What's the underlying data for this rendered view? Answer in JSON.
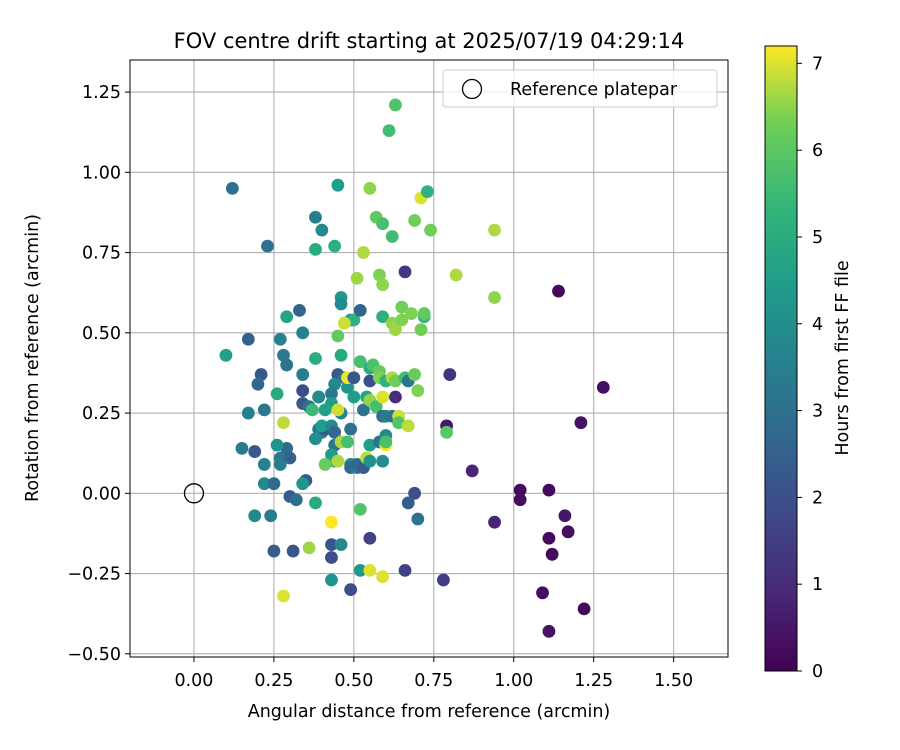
{
  "chart_data": {
    "type": "scatter",
    "title": "FOV centre drift starting at 2025/07/19 04:29:14",
    "xlabel": "Angular distance from reference (arcmin)",
    "ylabel": "Rotation from reference (arcmin)",
    "xlim": [
      -0.2,
      1.67
    ],
    "ylim": [
      -0.51,
      1.35
    ],
    "xticks": [
      0.0,
      0.25,
      0.5,
      0.75,
      1.0,
      1.25,
      1.5
    ],
    "xtick_labels": [
      "0.00",
      "0.25",
      "0.50",
      "0.75",
      "1.00",
      "1.25",
      "1.50"
    ],
    "yticks": [
      -0.5,
      -0.25,
      0.0,
      0.25,
      0.5,
      0.75,
      1.0,
      1.25
    ],
    "ytick_labels": [
      "−0.50",
      "−0.25",
      "0.00",
      "0.25",
      "0.50",
      "0.75",
      "1.00",
      "1.25"
    ],
    "grid": true,
    "legend": {
      "position": "top-right",
      "entries": [
        "Reference platepar"
      ]
    },
    "reference_point": {
      "x": 0.0,
      "y": 0.0,
      "marker": "open-circle"
    },
    "colorbar": {
      "label": "Hours from first FF file",
      "range": [
        0,
        7.2
      ],
      "ticks": [
        0,
        1,
        2,
        3,
        4,
        5,
        6,
        7
      ],
      "colormap": "viridis"
    },
    "points": [
      {
        "x": 1.28,
        "y": 0.33,
        "c": 0.3
      },
      {
        "x": 1.14,
        "y": 0.63,
        "c": 0.2
      },
      {
        "x": 1.21,
        "y": 0.22,
        "c": 0.4
      },
      {
        "x": 1.02,
        "y": 0.01,
        "c": 0.2
      },
      {
        "x": 1.02,
        "y": -0.02,
        "c": 0.3
      },
      {
        "x": 1.11,
        "y": 0.01,
        "c": 0.2
      },
      {
        "x": 1.16,
        "y": -0.07,
        "c": 0.5
      },
      {
        "x": 1.17,
        "y": -0.12,
        "c": 0.3
      },
      {
        "x": 1.11,
        "y": -0.14,
        "c": 0.2
      },
      {
        "x": 1.12,
        "y": -0.19,
        "c": 0.2
      },
      {
        "x": 1.09,
        "y": -0.31,
        "c": 0.3
      },
      {
        "x": 1.22,
        "y": -0.36,
        "c": 0.2
      },
      {
        "x": 1.11,
        "y": -0.43,
        "c": 0.4
      },
      {
        "x": 0.94,
        "y": -0.09,
        "c": 0.8
      },
      {
        "x": 0.87,
        "y": 0.07,
        "c": 0.8
      },
      {
        "x": 0.8,
        "y": 0.37,
        "c": 1.2
      },
      {
        "x": 0.79,
        "y": 0.21,
        "c": 0.5
      },
      {
        "x": 0.78,
        "y": -0.27,
        "c": 1.5
      },
      {
        "x": 0.66,
        "y": 0.69,
        "c": 1.3
      },
      {
        "x": 0.66,
        "y": -0.24,
        "c": 1.6
      },
      {
        "x": 0.69,
        "y": 0.0,
        "c": 2.0
      },
      {
        "x": 0.67,
        "y": -0.03,
        "c": 2.4
      },
      {
        "x": 0.7,
        "y": -0.08,
        "c": 3.1
      },
      {
        "x": 0.63,
        "y": 0.3,
        "c": 1.0
      },
      {
        "x": 0.55,
        "y": -0.14,
        "c": 1.6
      },
      {
        "x": 0.49,
        "y": -0.3,
        "c": 1.9
      },
      {
        "x": 0.43,
        "y": -0.2,
        "c": 1.9
      },
      {
        "x": 0.43,
        "y": -0.16,
        "c": 2.3
      },
      {
        "x": 0.31,
        "y": -0.18,
        "c": 2.2
      },
      {
        "x": 0.25,
        "y": -0.18,
        "c": 2.4
      },
      {
        "x": 0.12,
        "y": 0.95,
        "c": 3.0
      },
      {
        "x": 0.23,
        "y": 0.77,
        "c": 3.0
      },
      {
        "x": 0.17,
        "y": 0.48,
        "c": 2.5
      },
      {
        "x": 0.21,
        "y": 0.37,
        "c": 2.2
      },
      {
        "x": 0.2,
        "y": 0.34,
        "c": 2.7
      },
      {
        "x": 0.17,
        "y": 0.25,
        "c": 3.5
      },
      {
        "x": 0.22,
        "y": 0.26,
        "c": 3.3
      },
      {
        "x": 0.15,
        "y": 0.14,
        "c": 3.4
      },
      {
        "x": 0.19,
        "y": 0.13,
        "c": 2.3
      },
      {
        "x": 0.22,
        "y": 0.09,
        "c": 3.6
      },
      {
        "x": 0.22,
        "y": 0.03,
        "c": 3.8
      },
      {
        "x": 0.25,
        "y": 0.03,
        "c": 2.8
      },
      {
        "x": 0.19,
        "y": -0.07,
        "c": 3.8
      },
      {
        "x": 0.24,
        "y": -0.07,
        "c": 3.4
      },
      {
        "x": 0.1,
        "y": 0.43,
        "c": 4.6
      },
      {
        "x": 0.27,
        "y": 0.48,
        "c": 3.6
      },
      {
        "x": 0.28,
        "y": 0.43,
        "c": 3.3
      },
      {
        "x": 0.29,
        "y": 0.4,
        "c": 3.1
      },
      {
        "x": 0.26,
        "y": 0.31,
        "c": 4.9
      },
      {
        "x": 0.29,
        "y": 0.55,
        "c": 4.7
      },
      {
        "x": 0.33,
        "y": 0.57,
        "c": 2.6
      },
      {
        "x": 0.34,
        "y": 0.5,
        "c": 3.6
      },
      {
        "x": 0.34,
        "y": 0.37,
        "c": 3.4
      },
      {
        "x": 0.34,
        "y": 0.32,
        "c": 2.0
      },
      {
        "x": 0.34,
        "y": 0.28,
        "c": 2.3
      },
      {
        "x": 0.36,
        "y": 0.27,
        "c": 3.0
      },
      {
        "x": 0.29,
        "y": 0.14,
        "c": 2.8
      },
      {
        "x": 0.27,
        "y": 0.11,
        "c": 3.3
      },
      {
        "x": 0.3,
        "y": 0.11,
        "c": 2.5
      },
      {
        "x": 0.27,
        "y": 0.09,
        "c": 3.5
      },
      {
        "x": 0.26,
        "y": 0.15,
        "c": 4.2
      },
      {
        "x": 0.3,
        "y": -0.01,
        "c": 2.4
      },
      {
        "x": 0.32,
        "y": -0.02,
        "c": 2.9
      },
      {
        "x": 0.35,
        "y": 0.04,
        "c": 2.2
      },
      {
        "x": 0.34,
        "y": 0.03,
        "c": 4.2
      },
      {
        "x": 0.38,
        "y": -0.03,
        "c": 4.9
      },
      {
        "x": 0.36,
        "y": -0.17,
        "c": 6.6
      },
      {
        "x": 0.28,
        "y": -0.32,
        "c": 7.0
      },
      {
        "x": 0.28,
        "y": 0.22,
        "c": 6.8
      },
      {
        "x": 0.38,
        "y": 0.86,
        "c": 3.5
      },
      {
        "x": 0.4,
        "y": 0.82,
        "c": 3.8
      },
      {
        "x": 0.45,
        "y": 0.96,
        "c": 4.5
      },
      {
        "x": 0.38,
        "y": 0.76,
        "c": 5.0
      },
      {
        "x": 0.44,
        "y": 0.77,
        "c": 5.1
      },
      {
        "x": 0.46,
        "y": 0.61,
        "c": 4.3
      },
      {
        "x": 0.46,
        "y": 0.59,
        "c": 3.9
      },
      {
        "x": 0.49,
        "y": 0.54,
        "c": 4.1
      },
      {
        "x": 0.5,
        "y": 0.54,
        "c": 5.2
      },
      {
        "x": 0.52,
        "y": 0.57,
        "c": 2.6
      },
      {
        "x": 0.38,
        "y": 0.42,
        "c": 5.0
      },
      {
        "x": 0.45,
        "y": 0.49,
        "c": 6.1
      },
      {
        "x": 0.46,
        "y": 0.43,
        "c": 4.9
      },
      {
        "x": 0.45,
        "y": 0.37,
        "c": 2.3
      },
      {
        "x": 0.47,
        "y": 0.36,
        "c": 3.0
      },
      {
        "x": 0.44,
        "y": 0.34,
        "c": 3.8
      },
      {
        "x": 0.43,
        "y": 0.31,
        "c": 3.3
      },
      {
        "x": 0.43,
        "y": 0.28,
        "c": 4.4
      },
      {
        "x": 0.41,
        "y": 0.26,
        "c": 4.6
      },
      {
        "x": 0.39,
        "y": 0.3,
        "c": 5.0
      },
      {
        "x": 0.39,
        "y": 0.3,
        "c": 3.8
      },
      {
        "x": 0.37,
        "y": 0.26,
        "c": 5.5
      },
      {
        "x": 0.39,
        "y": 0.2,
        "c": 3.0
      },
      {
        "x": 0.4,
        "y": 0.19,
        "c": 3.6
      },
      {
        "x": 0.41,
        "y": 0.2,
        "c": 2.2
      },
      {
        "x": 0.38,
        "y": 0.17,
        "c": 4.0
      },
      {
        "x": 0.4,
        "y": 0.21,
        "c": 4.5
      },
      {
        "x": 0.43,
        "y": 0.21,
        "c": 3.9
      },
      {
        "x": 0.44,
        "y": 0.19,
        "c": 2.7
      },
      {
        "x": 0.44,
        "y": 0.15,
        "c": 3.2
      },
      {
        "x": 0.43,
        "y": 0.12,
        "c": 4.4
      },
      {
        "x": 0.44,
        "y": 0.1,
        "c": 4.8
      },
      {
        "x": 0.46,
        "y": 0.25,
        "c": 3.7
      },
      {
        "x": 0.45,
        "y": 0.26,
        "c": 6.9
      },
      {
        "x": 0.46,
        "y": 0.16,
        "c": 6.7
      },
      {
        "x": 0.49,
        "y": 0.2,
        "c": 3.0
      },
      {
        "x": 0.48,
        "y": 0.16,
        "c": 5.7
      },
      {
        "x": 0.5,
        "y": 0.3,
        "c": 4.5
      },
      {
        "x": 0.48,
        "y": 0.33,
        "c": 4.2
      },
      {
        "x": 0.48,
        "y": 0.36,
        "c": 7.1
      },
      {
        "x": 0.5,
        "y": 0.36,
        "c": 2.2
      },
      {
        "x": 0.41,
        "y": 0.09,
        "c": 6.2
      },
      {
        "x": 0.45,
        "y": 0.1,
        "c": 6.7
      },
      {
        "x": 0.43,
        "y": -0.09,
        "c": 7.2
      },
      {
        "x": 0.46,
        "y": -0.16,
        "c": 3.8
      },
      {
        "x": 0.43,
        "y": -0.27,
        "c": 4.2
      },
      {
        "x": 0.52,
        "y": -0.05,
        "c": 5.9
      },
      {
        "x": 0.52,
        "y": -0.24,
        "c": 4.3
      },
      {
        "x": 0.55,
        "y": -0.24,
        "c": 7.0
      },
      {
        "x": 0.59,
        "y": -0.26,
        "c": 7.0
      },
      {
        "x": 0.49,
        "y": 0.09,
        "c": 3.7
      },
      {
        "x": 0.49,
        "y": 0.08,
        "c": 2.7
      },
      {
        "x": 0.51,
        "y": 0.08,
        "c": 3.4
      },
      {
        "x": 0.51,
        "y": 0.09,
        "c": 2.8
      },
      {
        "x": 0.53,
        "y": 0.08,
        "c": 2.4
      },
      {
        "x": 0.54,
        "y": 0.11,
        "c": 6.8
      },
      {
        "x": 0.55,
        "y": 0.1,
        "c": 4.1
      },
      {
        "x": 0.55,
        "y": 0.15,
        "c": 4.5
      },
      {
        "x": 0.58,
        "y": 0.16,
        "c": 3.1
      },
      {
        "x": 0.59,
        "y": 0.1,
        "c": 4.0
      },
      {
        "x": 0.6,
        "y": 0.15,
        "c": 7.2
      },
      {
        "x": 0.6,
        "y": 0.18,
        "c": 3.9
      },
      {
        "x": 0.6,
        "y": 0.16,
        "c": 5.7
      },
      {
        "x": 0.53,
        "y": 0.26,
        "c": 3.1
      },
      {
        "x": 0.54,
        "y": 0.3,
        "c": 4.7
      },
      {
        "x": 0.55,
        "y": 0.29,
        "c": 6.5
      },
      {
        "x": 0.57,
        "y": 0.27,
        "c": 5.7
      },
      {
        "x": 0.59,
        "y": 0.3,
        "c": 7.0
      },
      {
        "x": 0.59,
        "y": 0.24,
        "c": 2.8
      },
      {
        "x": 0.6,
        "y": 0.24,
        "c": 3.4
      },
      {
        "x": 0.62,
        "y": 0.24,
        "c": 3.1
      },
      {
        "x": 0.64,
        "y": 0.24,
        "c": 6.9
      },
      {
        "x": 0.64,
        "y": 0.22,
        "c": 5.9
      },
      {
        "x": 0.67,
        "y": 0.21,
        "c": 6.8
      },
      {
        "x": 0.55,
        "y": 0.35,
        "c": 2.0
      },
      {
        "x": 0.52,
        "y": 0.41,
        "c": 5.7
      },
      {
        "x": 0.55,
        "y": 0.39,
        "c": 5.0
      },
      {
        "x": 0.56,
        "y": 0.4,
        "c": 5.8
      },
      {
        "x": 0.58,
        "y": 0.38,
        "c": 6.2
      },
      {
        "x": 0.58,
        "y": 0.36,
        "c": 6.4
      },
      {
        "x": 0.6,
        "y": 0.35,
        "c": 5.2
      },
      {
        "x": 0.62,
        "y": 0.36,
        "c": 6.7
      },
      {
        "x": 0.63,
        "y": 0.35,
        "c": 6.3
      },
      {
        "x": 0.66,
        "y": 0.36,
        "c": 5.6
      },
      {
        "x": 0.67,
        "y": 0.35,
        "c": 3.2
      },
      {
        "x": 0.69,
        "y": 0.37,
        "c": 6.2
      },
      {
        "x": 0.7,
        "y": 0.32,
        "c": 6.4
      },
      {
        "x": 0.55,
        "y": 0.95,
        "c": 6.5
      },
      {
        "x": 0.57,
        "y": 0.86,
        "c": 6.1
      },
      {
        "x": 0.59,
        "y": 0.84,
        "c": 5.7
      },
      {
        "x": 0.53,
        "y": 0.75,
        "c": 6.7
      },
      {
        "x": 0.58,
        "y": 0.68,
        "c": 6.4
      },
      {
        "x": 0.59,
        "y": 0.65,
        "c": 6.5
      },
      {
        "x": 0.51,
        "y": 0.67,
        "c": 6.6
      },
      {
        "x": 0.47,
        "y": 0.53,
        "c": 6.9
      },
      {
        "x": 0.59,
        "y": 0.55,
        "c": 5.1
      },
      {
        "x": 0.62,
        "y": 0.53,
        "c": 6.5
      },
      {
        "x": 0.63,
        "y": 0.51,
        "c": 6.6
      },
      {
        "x": 0.65,
        "y": 0.54,
        "c": 6.4
      },
      {
        "x": 0.65,
        "y": 0.58,
        "c": 6.3
      },
      {
        "x": 0.68,
        "y": 0.56,
        "c": 6.4
      },
      {
        "x": 0.71,
        "y": 0.51,
        "c": 6.3
      },
      {
        "x": 0.72,
        "y": 0.55,
        "c": 5.3
      },
      {
        "x": 0.72,
        "y": 0.56,
        "c": 6.1
      },
      {
        "x": 0.62,
        "y": 0.8,
        "c": 5.6
      },
      {
        "x": 0.69,
        "y": 0.85,
        "c": 6.3
      },
      {
        "x": 0.71,
        "y": 0.92,
        "c": 7.0
      },
      {
        "x": 0.73,
        "y": 0.94,
        "c": 5.2
      },
      {
        "x": 0.74,
        "y": 0.82,
        "c": 6.3
      },
      {
        "x": 0.79,
        "y": 0.19,
        "c": 6.0
      },
      {
        "x": 0.82,
        "y": 0.68,
        "c": 6.7
      },
      {
        "x": 0.94,
        "y": 0.82,
        "c": 6.7
      },
      {
        "x": 0.94,
        "y": 0.61,
        "c": 6.5
      },
      {
        "x": 0.61,
        "y": 1.13,
        "c": 5.6
      },
      {
        "x": 0.63,
        "y": 1.21,
        "c": 5.8
      }
    ]
  }
}
